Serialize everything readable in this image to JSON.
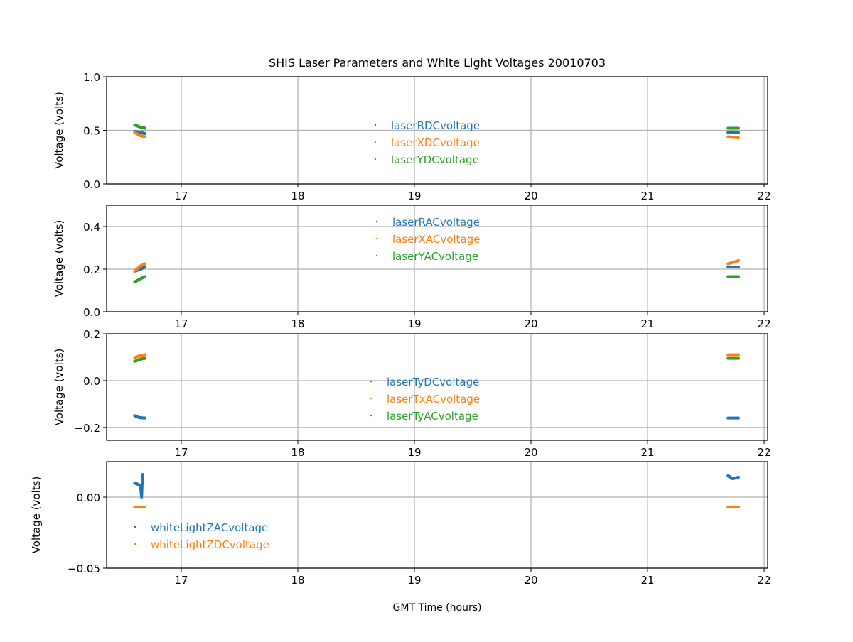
{
  "chart_data": {
    "type": "scatter",
    "title": "SHIS Laser Parameters and White Light Voltages 20010703",
    "xlabel": "GMT Time (hours)",
    "xlim": [
      16.36,
      22.03
    ],
    "xticks": [
      "17",
      "18",
      "19",
      "20",
      "21",
      "22"
    ],
    "grid": true,
    "colors": {
      "blue": "#1f77b4",
      "orange": "#ff7f0e",
      "green": "#2ca02c"
    },
    "panels": [
      {
        "ylabel": "Voltage (volts)",
        "ylim": [
          0,
          1.0
        ],
        "yticks": [
          {
            "v": 0,
            "label": "0.0"
          },
          {
            "v": 0.5,
            "label": "0.5"
          },
          {
            "v": 1.0,
            "label": "1.0"
          }
        ],
        "legend": "center",
        "series": [
          {
            "name": "laserRDCvoltage",
            "color": "#1f77b4",
            "points": [
              [
                16.6,
                0.49
              ],
              [
                16.65,
                0.48
              ],
              [
                16.69,
                0.47
              ],
              [
                21.69,
                0.48
              ],
              [
                21.78,
                0.48
              ]
            ]
          },
          {
            "name": "laserXDCvoltage",
            "color": "#ff7f0e",
            "points": [
              [
                16.6,
                0.48
              ],
              [
                16.65,
                0.45
              ],
              [
                16.69,
                0.44
              ],
              [
                21.69,
                0.44
              ],
              [
                21.78,
                0.43
              ]
            ]
          },
          {
            "name": "laserYDCvoltage",
            "color": "#2ca02c",
            "points": [
              [
                16.6,
                0.55
              ],
              [
                16.65,
                0.53
              ],
              [
                16.69,
                0.52
              ],
              [
                21.69,
                0.52
              ],
              [
                21.78,
                0.52
              ]
            ]
          }
        ]
      },
      {
        "ylabel": "Voltage (volts)",
        "ylim": [
          0,
          0.5
        ],
        "yticks": [
          {
            "v": 0,
            "label": "0.0"
          },
          {
            "v": 0.2,
            "label": "0.2"
          },
          {
            "v": 0.4,
            "label": "0.4"
          }
        ],
        "legend": "upper center",
        "series": [
          {
            "name": "laserRACvoltage",
            "color": "#1f77b4",
            "points": [
              [
                16.6,
                0.19
              ],
              [
                16.65,
                0.2
              ],
              [
                16.69,
                0.21
              ],
              [
                21.69,
                0.21
              ],
              [
                21.78,
                0.21
              ]
            ]
          },
          {
            "name": "laserXACvoltage",
            "color": "#ff7f0e",
            "points": [
              [
                16.6,
                0.19
              ],
              [
                16.65,
                0.215
              ],
              [
                16.69,
                0.225
              ],
              [
                21.69,
                0.225
              ],
              [
                21.78,
                0.24
              ]
            ]
          },
          {
            "name": "laserYACvoltage",
            "color": "#2ca02c",
            "points": [
              [
                16.6,
                0.14
              ],
              [
                16.65,
                0.155
              ],
              [
                16.69,
                0.165
              ],
              [
                21.69,
                0.165
              ],
              [
                21.78,
                0.165
              ]
            ]
          }
        ]
      },
      {
        "ylabel": "Voltage (volts)",
        "ylim": [
          -0.255,
          0.2
        ],
        "yticks": [
          {
            "v": -0.2,
            "label": "−0.2"
          },
          {
            "v": 0,
            "label": "0.0"
          },
          {
            "v": 0.2,
            "label": "0.2"
          }
        ],
        "legend": "lower center",
        "series": [
          {
            "name": "laserTyDCvoltage",
            "color": "#1f77b4",
            "points": [
              [
                16.6,
                -0.15
              ],
              [
                16.64,
                -0.158
              ],
              [
                16.69,
                -0.16
              ],
              [
                21.69,
                -0.16
              ],
              [
                21.78,
                -0.16
              ]
            ]
          },
          {
            "name": "laserTxACvoltage",
            "color": "#ff7f0e",
            "points": [
              [
                16.6,
                0.098
              ],
              [
                16.65,
                0.107
              ],
              [
                16.69,
                0.11
              ],
              [
                21.69,
                0.11
              ],
              [
                21.78,
                0.11
              ]
            ]
          },
          {
            "name": "laserTyACvoltage",
            "color": "#2ca02c",
            "points": [
              [
                16.6,
                0.082
              ],
              [
                16.65,
                0.092
              ],
              [
                16.69,
                0.095
              ],
              [
                21.69,
                0.095
              ],
              [
                21.78,
                0.095
              ]
            ]
          }
        ]
      },
      {
        "ylabel": "Voltage (volts)",
        "ylim": [
          -0.05,
          0.025
        ],
        "yticks": [
          {
            "v": -0.05,
            "label": "−0.05"
          },
          {
            "v": 0,
            "label": "0.00"
          }
        ],
        "legend": "lower left",
        "series": [
          {
            "name": "whiteLightZACvoltage",
            "color": "#1f77b4",
            "points": [
              [
                16.6,
                0.01
              ],
              [
                16.63,
                0.009
              ],
              [
                16.65,
                0.008
              ],
              [
                16.66,
                0.0
              ],
              [
                16.665,
                0.01
              ],
              [
                16.67,
                0.016
              ],
              [
                21.69,
                0.015
              ],
              [
                21.73,
                0.013
              ],
              [
                21.78,
                0.014
              ]
            ]
          },
          {
            "name": "whiteLightZDCvoltage",
            "color": "#ff7f0e",
            "points": [
              [
                16.6,
                -0.007
              ],
              [
                16.69,
                -0.007
              ],
              [
                21.69,
                -0.007
              ],
              [
                21.78,
                -0.007
              ]
            ]
          }
        ]
      }
    ]
  }
}
